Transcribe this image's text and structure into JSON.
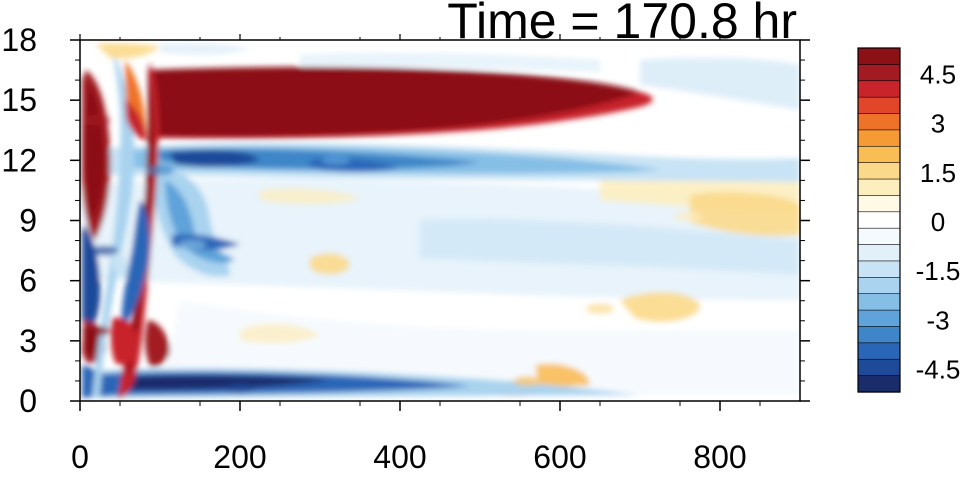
{
  "chart_data": {
    "type": "heatmap",
    "title": "Time = 170.8 hr",
    "xlabel": "",
    "ylabel": "",
    "xlim": [
      0,
      900
    ],
    "ylim": [
      0,
      18
    ],
    "x_ticks": [
      "0",
      "200",
      "400",
      "600",
      "800"
    ],
    "y_ticks": [
      "0",
      "3",
      "6",
      "9",
      "12",
      "15",
      "18"
    ],
    "colorbar": {
      "levels": [
        -5,
        -4.5,
        -4,
        -3.5,
        -3,
        -2.5,
        -2,
        -1.5,
        -1,
        -0.5,
        0,
        0.5,
        1,
        1.5,
        2,
        2.5,
        3,
        3.5,
        4,
        4.5,
        5
      ],
      "labels": [
        "4.5",
        "3",
        "1.5",
        "0",
        "-1.5",
        "-3",
        "-4.5"
      ],
      "colors": [
        "#1b2c6b",
        "#1f4a9a",
        "#2a66b8",
        "#3e86c8",
        "#5fa3da",
        "#86bfe6",
        "#a9d3ef",
        "#c8e3f5",
        "#e2f0fa",
        "#f5fafe",
        "#ffffff",
        "#fff9e6",
        "#fdeec0",
        "#fbd98a",
        "#f9bd56",
        "#f59a35",
        "#ee7328",
        "#e2462a",
        "#c8242a",
        "#a21a22",
        "#8c1117"
      ]
    },
    "features": [
      {
        "x": 400,
        "y": 15.0,
        "value": 5.0
      },
      {
        "x": 100,
        "y": 11.5,
        "value": -3.5
      },
      {
        "x": 320,
        "y": 12.0,
        "value": -3.0
      },
      {
        "x": 200,
        "y": 0.6,
        "value": -4.5
      },
      {
        "x": 20,
        "y": 3.5,
        "value": 5.0
      },
      {
        "x": 20,
        "y": 14.0,
        "value": 4.5
      },
      {
        "x": 30,
        "y": 7.5,
        "value": -4.5
      },
      {
        "x": 140,
        "y": 7.8,
        "value": -2.5
      },
      {
        "x": 650,
        "y": 4.6,
        "value": 1.5
      },
      {
        "x": 760,
        "y": 9.2,
        "value": 1.2
      },
      {
        "x": 560,
        "y": 1.0,
        "value": 2.0
      }
    ]
  }
}
